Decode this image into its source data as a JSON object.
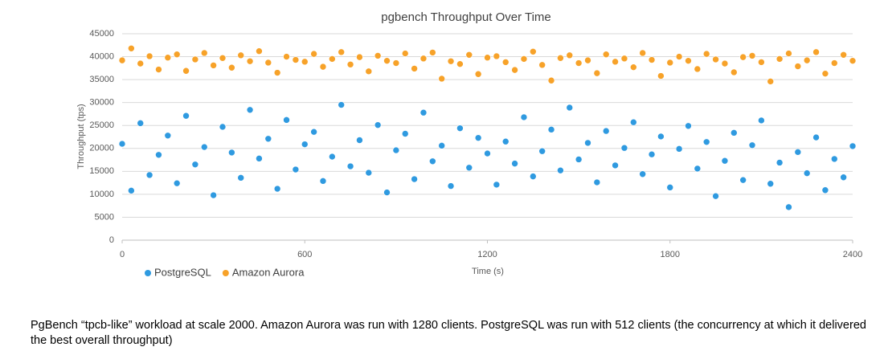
{
  "chart_data": {
    "type": "scatter",
    "title": "pgbench Throughput Over Time",
    "x_label": "Time (s)",
    "y_label": "Throughput (tps)",
    "xlim": [
      0,
      2400
    ],
    "xticks": [
      0,
      600,
      1200,
      1800,
      2400
    ],
    "ylim": [
      0,
      45000
    ],
    "yticks": [
      0,
      5000,
      10000,
      15000,
      20000,
      25000,
      30000,
      35000,
      40000,
      45000
    ],
    "grid": true,
    "x": [
      0,
      30,
      60,
      90,
      120,
      150,
      180,
      210,
      240,
      270,
      300,
      330,
      360,
      390,
      420,
      450,
      480,
      510,
      540,
      570,
      600,
      630,
      660,
      690,
      720,
      750,
      780,
      810,
      840,
      870,
      900,
      930,
      960,
      990,
      1020,
      1050,
      1080,
      1110,
      1140,
      1170,
      1200,
      1230,
      1260,
      1290,
      1320,
      1350,
      1380,
      1410,
      1440,
      1470,
      1500,
      1530,
      1560,
      1590,
      1620,
      1650,
      1680,
      1710,
      1740,
      1770,
      1800,
      1830,
      1860,
      1890,
      1920,
      1950,
      1980,
      2010,
      2040,
      2070,
      2100,
      2130,
      2160,
      2190,
      2220,
      2250,
      2280,
      2310,
      2340,
      2370,
      2400
    ],
    "series": [
      {
        "name": "PostgreSQL",
        "color": "#2f9ae0",
        "values": [
          21000,
          10800,
          25500,
          14200,
          18600,
          22800,
          12400,
          27100,
          16500,
          20300,
          9800,
          24700,
          19100,
          13600,
          28400,
          17800,
          22100,
          11200,
          26200,
          15400,
          20900,
          23600,
          12900,
          18200,
          29500,
          16100,
          21800,
          14700,
          25100,
          10400,
          19600,
          23200,
          13300,
          27800,
          17200,
          20600,
          11800,
          24400,
          15800,
          22300,
          18900,
          12100,
          21500,
          16700,
          26800,
          13900,
          19400,
          24100,
          15200,
          28900,
          17600,
          21200,
          12600,
          23800,
          16300,
          20100,
          25700,
          14400,
          18700,
          22600,
          11500,
          19900,
          24900,
          15600,
          21400,
          9600,
          17300,
          23400,
          13100,
          20700,
          26100,
          12300,
          16900,
          7200,
          19200,
          14600,
          22400,
          10900,
          17700,
          13700,
          20500
        ]
      },
      {
        "name": "Amazon Aurora",
        "color": "#f7a229",
        "values": [
          39200,
          41800,
          38500,
          40100,
          37200,
          39800,
          40500,
          36900,
          39400,
          40800,
          38100,
          39700,
          37600,
          40300,
          39000,
          41200,
          38700,
          36500,
          40000,
          39300,
          38900,
          40600,
          37800,
          39500,
          41000,
          38300,
          39900,
          36800,
          40200,
          39100,
          38600,
          40700,
          37400,
          39600,
          40900,
          35200,
          39000,
          38400,
          40400,
          36200,
          39800,
          40100,
          38800,
          37100,
          39500,
          41100,
          38200,
          34800,
          39700,
          40300,
          38600,
          39200,
          36400,
          40500,
          38900,
          39600,
          37700,
          40800,
          39300,
          35800,
          38700,
          40000,
          39100,
          37300,
          40600,
          39400,
          38500,
          36600,
          39900,
          40200,
          38800,
          34600,
          39500,
          40700,
          37900,
          39200,
          41000,
          36300,
          38600,
          40400,
          39100
        ]
      }
    ]
  },
  "caption": "PgBench “tpcb-like” workload at scale 2000. Amazon Aurora was run with 1280 clients. PostgreSQL was run with 512 clients (the concurrency at which it delivered the best overall throughput)"
}
